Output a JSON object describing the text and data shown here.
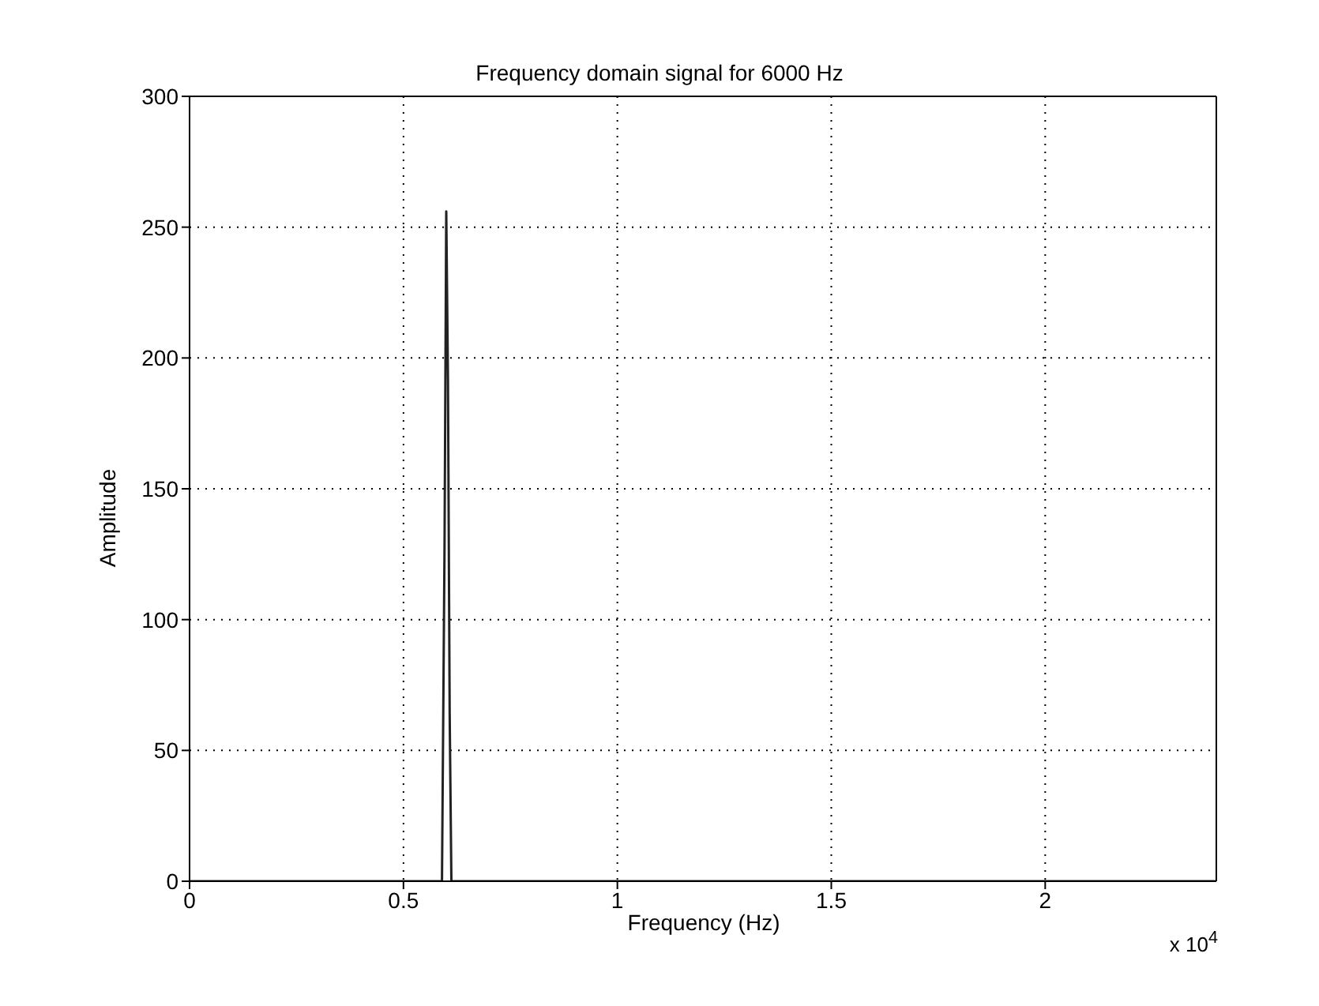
{
  "chart_data": {
    "type": "line",
    "title": "Frequency domain signal for 6000 Hz",
    "xlabel": "Frequency (Hz)",
    "ylabel": "Amplitude",
    "annotations": [
      "x 10$^{4}$"
    ],
    "series": [
      {
        "color": "#222222",
        "x": [
          0,
          0.59,
          0.596,
          0.6,
          0.604,
          0.608,
          0.612,
          2.4
        ],
        "values": [
          0,
          0,
          128,
          256,
          192,
          64,
          0,
          0
        ]
      }
    ],
    "xlim": [
      0,
      2.4
    ],
    "xticks": [
      0,
      0.5,
      1,
      1.5,
      2
    ],
    "ylim": [
      0,
      300
    ],
    "yticks": [
      0,
      50,
      100,
      150,
      200,
      250,
      300
    ],
    "grid": true,
    "line_style": "solid",
    "marker": "none"
  }
}
